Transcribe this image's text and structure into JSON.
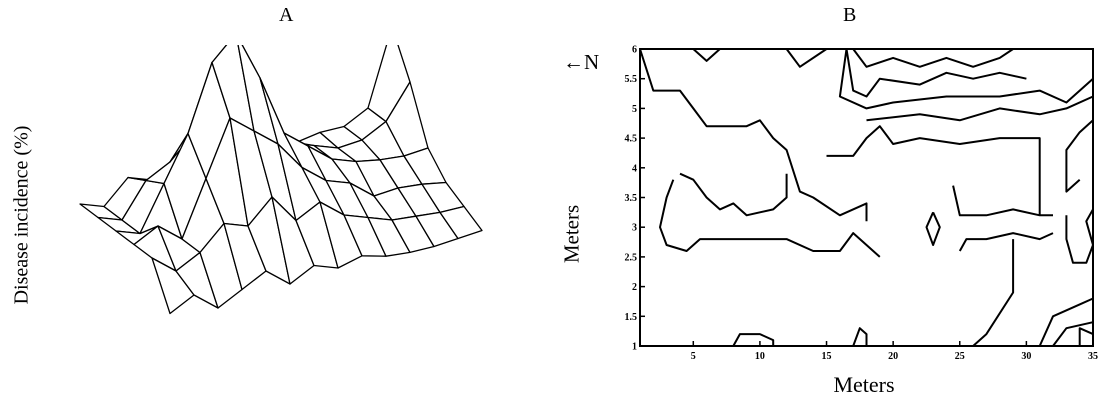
{
  "chart_data": [
    {
      "type": "other",
      "panel_label": "A",
      "ylabel": "Disease incidence (%)"
    },
    {
      "type": "other",
      "panel_label": "B",
      "annotation": "←N",
      "xlabel": "Meters",
      "ylabel": "Meters",
      "xlim": [
        1,
        35
      ],
      "ylim": [
        1,
        6
      ],
      "x_ticks": [
        "5",
        "10",
        "15",
        "20",
        "25",
        "30",
        "35"
      ],
      "y_ticks": [
        "1",
        "1.5",
        "2",
        "2.5",
        "3",
        "3.5",
        "4",
        "4.5",
        "5",
        "5.5",
        "6"
      ],
      "contours": [
        [
          [
            1,
            6
          ],
          [
            5,
            6
          ],
          [
            6,
            5.8
          ],
          [
            7,
            6
          ]
        ],
        [
          [
            12,
            6
          ],
          [
            13,
            5.7
          ],
          [
            15,
            6
          ]
        ],
        [
          [
            17,
            6
          ],
          [
            18,
            5.7
          ],
          [
            20,
            5.85
          ],
          [
            22,
            5.7
          ],
          [
            24,
            5.85
          ],
          [
            26,
            5.7
          ],
          [
            28,
            5.85
          ],
          [
            29,
            6
          ]
        ],
        [
          [
            16.5,
            6
          ],
          [
            17,
            5.3
          ],
          [
            18,
            5.2
          ],
          [
            19,
            5.5
          ],
          [
            22,
            5.4
          ],
          [
            24,
            5.6
          ],
          [
            26,
            5.5
          ],
          [
            28,
            5.6
          ],
          [
            30,
            5.5
          ]
        ],
        [
          [
            16.5,
            6
          ],
          [
            16,
            5.2
          ],
          [
            18,
            5.0
          ],
          [
            20,
            5.1
          ],
          [
            24,
            5.2
          ],
          [
            28,
            5.2
          ],
          [
            31,
            5.3
          ],
          [
            33,
            5.1
          ],
          [
            35,
            5.5
          ]
        ],
        [
          [
            18,
            4.8
          ],
          [
            22,
            4.9
          ],
          [
            25,
            4.8
          ],
          [
            28,
            5.0
          ],
          [
            31,
            4.9
          ],
          [
            33,
            5.0
          ],
          [
            35,
            5.2
          ]
        ],
        [
          [
            1,
            6
          ],
          [
            2,
            5.3
          ],
          [
            4,
            5.3
          ],
          [
            5,
            5.0
          ],
          [
            6,
            4.7
          ],
          [
            9,
            4.7
          ],
          [
            10,
            4.8
          ],
          [
            11,
            4.5
          ],
          [
            12,
            4.3
          ],
          [
            13,
            3.6
          ],
          [
            14,
            3.5
          ],
          [
            16,
            3.2
          ],
          [
            18,
            3.4
          ],
          [
            18,
            3.1
          ]
        ],
        [
          [
            15,
            4.2
          ],
          [
            17,
            4.2
          ],
          [
            18,
            4.5
          ],
          [
            19,
            4.7
          ],
          [
            20,
            4.4
          ],
          [
            22,
            4.5
          ],
          [
            25,
            4.4
          ],
          [
            28,
            4.5
          ],
          [
            31,
            4.5
          ],
          [
            31,
            3.8
          ],
          [
            31,
            3.2
          ]
        ],
        [
          [
            3.5,
            3.8
          ],
          [
            3,
            3.5
          ],
          [
            2.5,
            3.0
          ],
          [
            3,
            2.7
          ],
          [
            4.5,
            2.6
          ],
          [
            5.5,
            2.8
          ],
          [
            7.5,
            2.8
          ],
          [
            9,
            2.8
          ],
          [
            12,
            2.8
          ],
          [
            14,
            2.6
          ],
          [
            16,
            2.6
          ],
          [
            17,
            2.9
          ],
          [
            18,
            2.7
          ],
          [
            19,
            2.5
          ]
        ],
        [
          [
            4,
            3.9
          ],
          [
            5,
            3.8
          ],
          [
            6,
            3.5
          ],
          [
            7,
            3.3
          ],
          [
            8,
            3.4
          ],
          [
            9,
            3.2
          ],
          [
            11,
            3.3
          ],
          [
            12,
            3.5
          ],
          [
            12,
            3.9
          ]
        ],
        [
          [
            23,
            3.25
          ],
          [
            22.5,
            3.0
          ],
          [
            23,
            2.7
          ],
          [
            23.5,
            3.0
          ],
          [
            23,
            3.25
          ]
        ],
        [
          [
            24.5,
            3.7
          ],
          [
            25,
            3.2
          ],
          [
            27,
            3.2
          ],
          [
            29,
            3.3
          ],
          [
            31,
            3.2
          ],
          [
            32,
            3.2
          ]
        ],
        [
          [
            25,
            2.6
          ],
          [
            25.5,
            2.8
          ],
          [
            27,
            2.8
          ],
          [
            29,
            2.9
          ],
          [
            31,
            2.8
          ],
          [
            32,
            2.9
          ]
        ],
        [
          [
            29,
            2.8
          ],
          [
            29,
            1.9
          ],
          [
            27,
            1.2
          ],
          [
            26,
            1.0
          ]
        ],
        [
          [
            31,
            1.0
          ],
          [
            32,
            1.5
          ],
          [
            34,
            1.7
          ],
          [
            35,
            1.8
          ]
        ],
        [
          [
            32,
            1.0
          ],
          [
            33,
            1.3
          ],
          [
            35,
            1.4
          ]
        ],
        [
          [
            34,
            1.0
          ],
          [
            34,
            1.3
          ],
          [
            35,
            1.2
          ]
        ],
        [
          [
            33,
            3.2
          ],
          [
            33,
            2.8
          ],
          [
            33.5,
            2.4
          ],
          [
            34.5,
            2.4
          ],
          [
            35,
            2.7
          ],
          [
            34.5,
            3.1
          ],
          [
            35,
            3.3
          ]
        ],
        [
          [
            34,
            3.8
          ],
          [
            33,
            3.6
          ],
          [
            33,
            4.3
          ],
          [
            34,
            4.6
          ],
          [
            35,
            4.8
          ]
        ],
        [
          [
            8,
            1.0
          ],
          [
            8.5,
            1.2
          ],
          [
            10,
            1.2
          ],
          [
            11,
            1.1
          ],
          [
            11,
            1.0
          ]
        ],
        [
          [
            17,
            1.0
          ],
          [
            17.5,
            1.3
          ],
          [
            18,
            1.2
          ],
          [
            18,
            1.0
          ]
        ]
      ]
    }
  ]
}
